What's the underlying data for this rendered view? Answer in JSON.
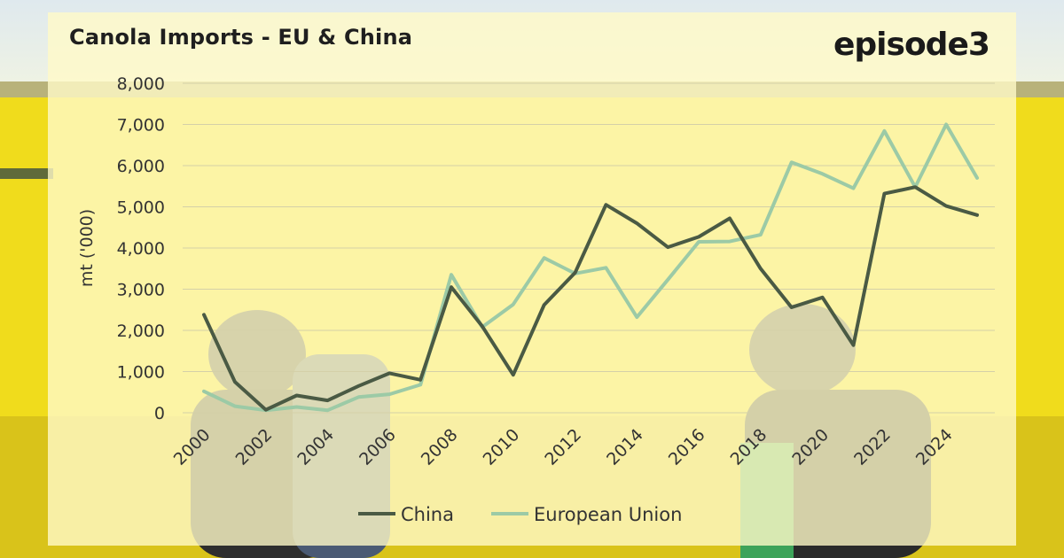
{
  "header": {
    "title": "Canola Imports - EU & China",
    "brand": "episode3"
  },
  "colors": {
    "china": "#4a5a44",
    "eu": "#9ccaa6",
    "grid": "#d4d0a8",
    "background_field": "#f2dc1e",
    "background_sky": "#e6eef2",
    "card": "#fffac8"
  },
  "chart_data": {
    "type": "line",
    "title": "Canola Imports - EU & China",
    "xlabel": "",
    "ylabel": "mt ('000)",
    "ylim": [
      0,
      8000
    ],
    "yticks": [
      "8,000",
      "7,000",
      "6,000",
      "5,000",
      "4,000",
      "3,000",
      "2,000",
      "1,000",
      "0"
    ],
    "ytick_values": [
      8000,
      7000,
      6000,
      5000,
      4000,
      3000,
      2000,
      1000,
      0
    ],
    "xticks": [
      "2000",
      "2002",
      "2004",
      "2006",
      "2008",
      "2010",
      "2012",
      "2014",
      "2016",
      "2018",
      "2020",
      "2022",
      "2024"
    ],
    "x": [
      2000,
      2001,
      2002,
      2003,
      2004,
      2005,
      2006,
      2007,
      2008,
      2009,
      2010,
      2011,
      2012,
      2013,
      2014,
      2015,
      2016,
      2017,
      2018,
      2019,
      2020,
      2021,
      2022,
      2023,
      2024,
      2025
    ],
    "grid": true,
    "legend_position": "bottom-center",
    "series": [
      {
        "name": "China",
        "color": "#4a5a44",
        "values": [
          2380,
          750,
          70,
          420,
          300,
          650,
          960,
          800,
          3050,
          2100,
          920,
          2620,
          3400,
          5050,
          4600,
          4020,
          4270,
          4720,
          3500,
          2560,
          2800,
          1640,
          5320,
          5480,
          5020,
          4800
        ]
      },
      {
        "name": "European Union",
        "color": "#9ccaa6",
        "values": [
          520,
          160,
          60,
          140,
          60,
          380,
          450,
          680,
          3350,
          2080,
          2630,
          3760,
          3380,
          3520,
          2320,
          3230,
          4150,
          4160,
          4320,
          6080,
          5800,
          5450,
          6840,
          5480,
          7000,
          5700
        ]
      }
    ]
  }
}
